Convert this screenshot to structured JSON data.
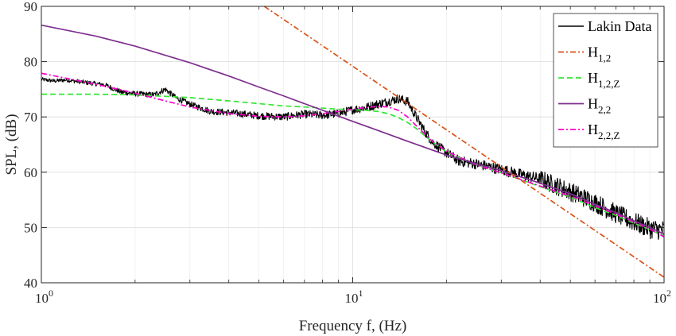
{
  "chart_data": {
    "type": "line",
    "xlabel": "Frequency f, (Hz)",
    "ylabel": "SPL, (dB)",
    "xscale": "log",
    "xlim": [
      1,
      100
    ],
    "ylim": [
      40,
      90
    ],
    "xticks": [
      1,
      10,
      100
    ],
    "xtick_labels": [
      {
        "base": "10",
        "exp": "0"
      },
      {
        "base": "10",
        "exp": "1"
      },
      {
        "base": "10",
        "exp": "2"
      }
    ],
    "yticks": [
      40,
      50,
      60,
      70,
      80,
      90
    ],
    "ytick_labels": [
      "40",
      "50",
      "60",
      "70",
      "80",
      "90"
    ],
    "grid": true,
    "legend_position": "top-right",
    "series": [
      {
        "name": "Lakin Data",
        "name_main": "Lakin Data",
        "name_sub": "",
        "color": "#000000",
        "style": "solid",
        "noisy": true,
        "x": [
          1,
          1.1,
          1.2,
          1.4,
          1.6,
          1.8,
          2.0,
          2.3,
          2.5,
          2.7,
          3.0,
          3.5,
          4.0,
          4.5,
          5.0,
          6.0,
          7.0,
          8.0,
          9.0,
          10,
          11,
          12,
          13,
          14,
          15,
          16,
          17,
          18,
          20,
          22,
          25,
          30,
          35,
          40,
          50,
          60,
          70,
          80,
          90,
          100
        ],
        "y": [
          76.8,
          76.5,
          76.7,
          76.2,
          75.8,
          74.5,
          74.2,
          74.0,
          75.0,
          73.5,
          72.3,
          71.0,
          70.8,
          70.5,
          70.2,
          70.0,
          70.5,
          70.3,
          70.6,
          71.3,
          71.7,
          72.3,
          72.8,
          73.3,
          72.8,
          70.0,
          67.5,
          65.5,
          63.5,
          62.0,
          61.5,
          60.5,
          59.5,
          58.8,
          56.5,
          54.5,
          52.5,
          51.0,
          49.8,
          49.5
        ]
      },
      {
        "name": "H1,2",
        "name_main": "H",
        "name_sub": "1,2",
        "color": "#d95319",
        "style": "dashdot",
        "x": [
          5.2,
          100
        ],
        "y": [
          90,
          41
        ]
      },
      {
        "name": "H1,2,Z",
        "name_main": "H",
        "name_sub": "1,2,Z",
        "color": "#32e632",
        "style": "dashed",
        "x": [
          1,
          1.5,
          2,
          3,
          4,
          5,
          6,
          7,
          8,
          9,
          10,
          11,
          12,
          13,
          14,
          15,
          16,
          18,
          20,
          25,
          30,
          40,
          50,
          60,
          70,
          80,
          90,
          100
        ],
        "y": [
          74.1,
          74.1,
          74.0,
          73.5,
          72.9,
          72.4,
          72.0,
          71.8,
          71.6,
          71.4,
          71.3,
          71.2,
          71.0,
          70.6,
          69.9,
          69.0,
          67.9,
          65.5,
          63.7,
          61.3,
          59.9,
          57.4,
          55.5,
          53.6,
          52.2,
          50.8,
          49.6,
          48.5
        ]
      },
      {
        "name": "H2,2",
        "name_main": "H",
        "name_sub": "2,2",
        "color": "#7e2f8e",
        "style": "solid",
        "x": [
          1,
          1.5,
          2,
          3,
          4,
          5,
          6,
          7,
          8,
          10,
          12,
          15,
          20,
          25,
          30,
          40,
          50,
          60,
          70,
          80,
          90,
          100
        ],
        "y": [
          86.6,
          84.6,
          82.8,
          79.8,
          77.4,
          75.4,
          73.8,
          72.4,
          71.2,
          69.2,
          67.6,
          65.6,
          63.1,
          61.5,
          60.3,
          58.0,
          56.1,
          54.2,
          52.7,
          51.2,
          50.0,
          48.8
        ]
      },
      {
        "name": "H2,2,Z",
        "name_main": "H",
        "name_sub": "2,2,Z",
        "color": "#ff00cc",
        "style": "dashdot",
        "x": [
          1,
          1.2,
          1.5,
          2,
          2.5,
          3,
          4,
          5,
          6,
          7,
          8,
          9,
          10,
          11,
          12,
          13,
          14,
          15,
          16,
          18,
          20,
          25,
          30,
          40,
          50,
          60,
          70,
          80,
          90,
          100
        ],
        "y": [
          77.9,
          77.0,
          75.9,
          74.3,
          72.9,
          71.8,
          70.6,
          70.1,
          70.0,
          70.2,
          70.6,
          71.0,
          71.4,
          71.7,
          71.9,
          71.8,
          71.2,
          70.0,
          68.4,
          65.6,
          63.8,
          61.3,
          59.9,
          57.5,
          55.7,
          53.9,
          52.4,
          51.0,
          49.7,
          48.3
        ]
      }
    ]
  }
}
